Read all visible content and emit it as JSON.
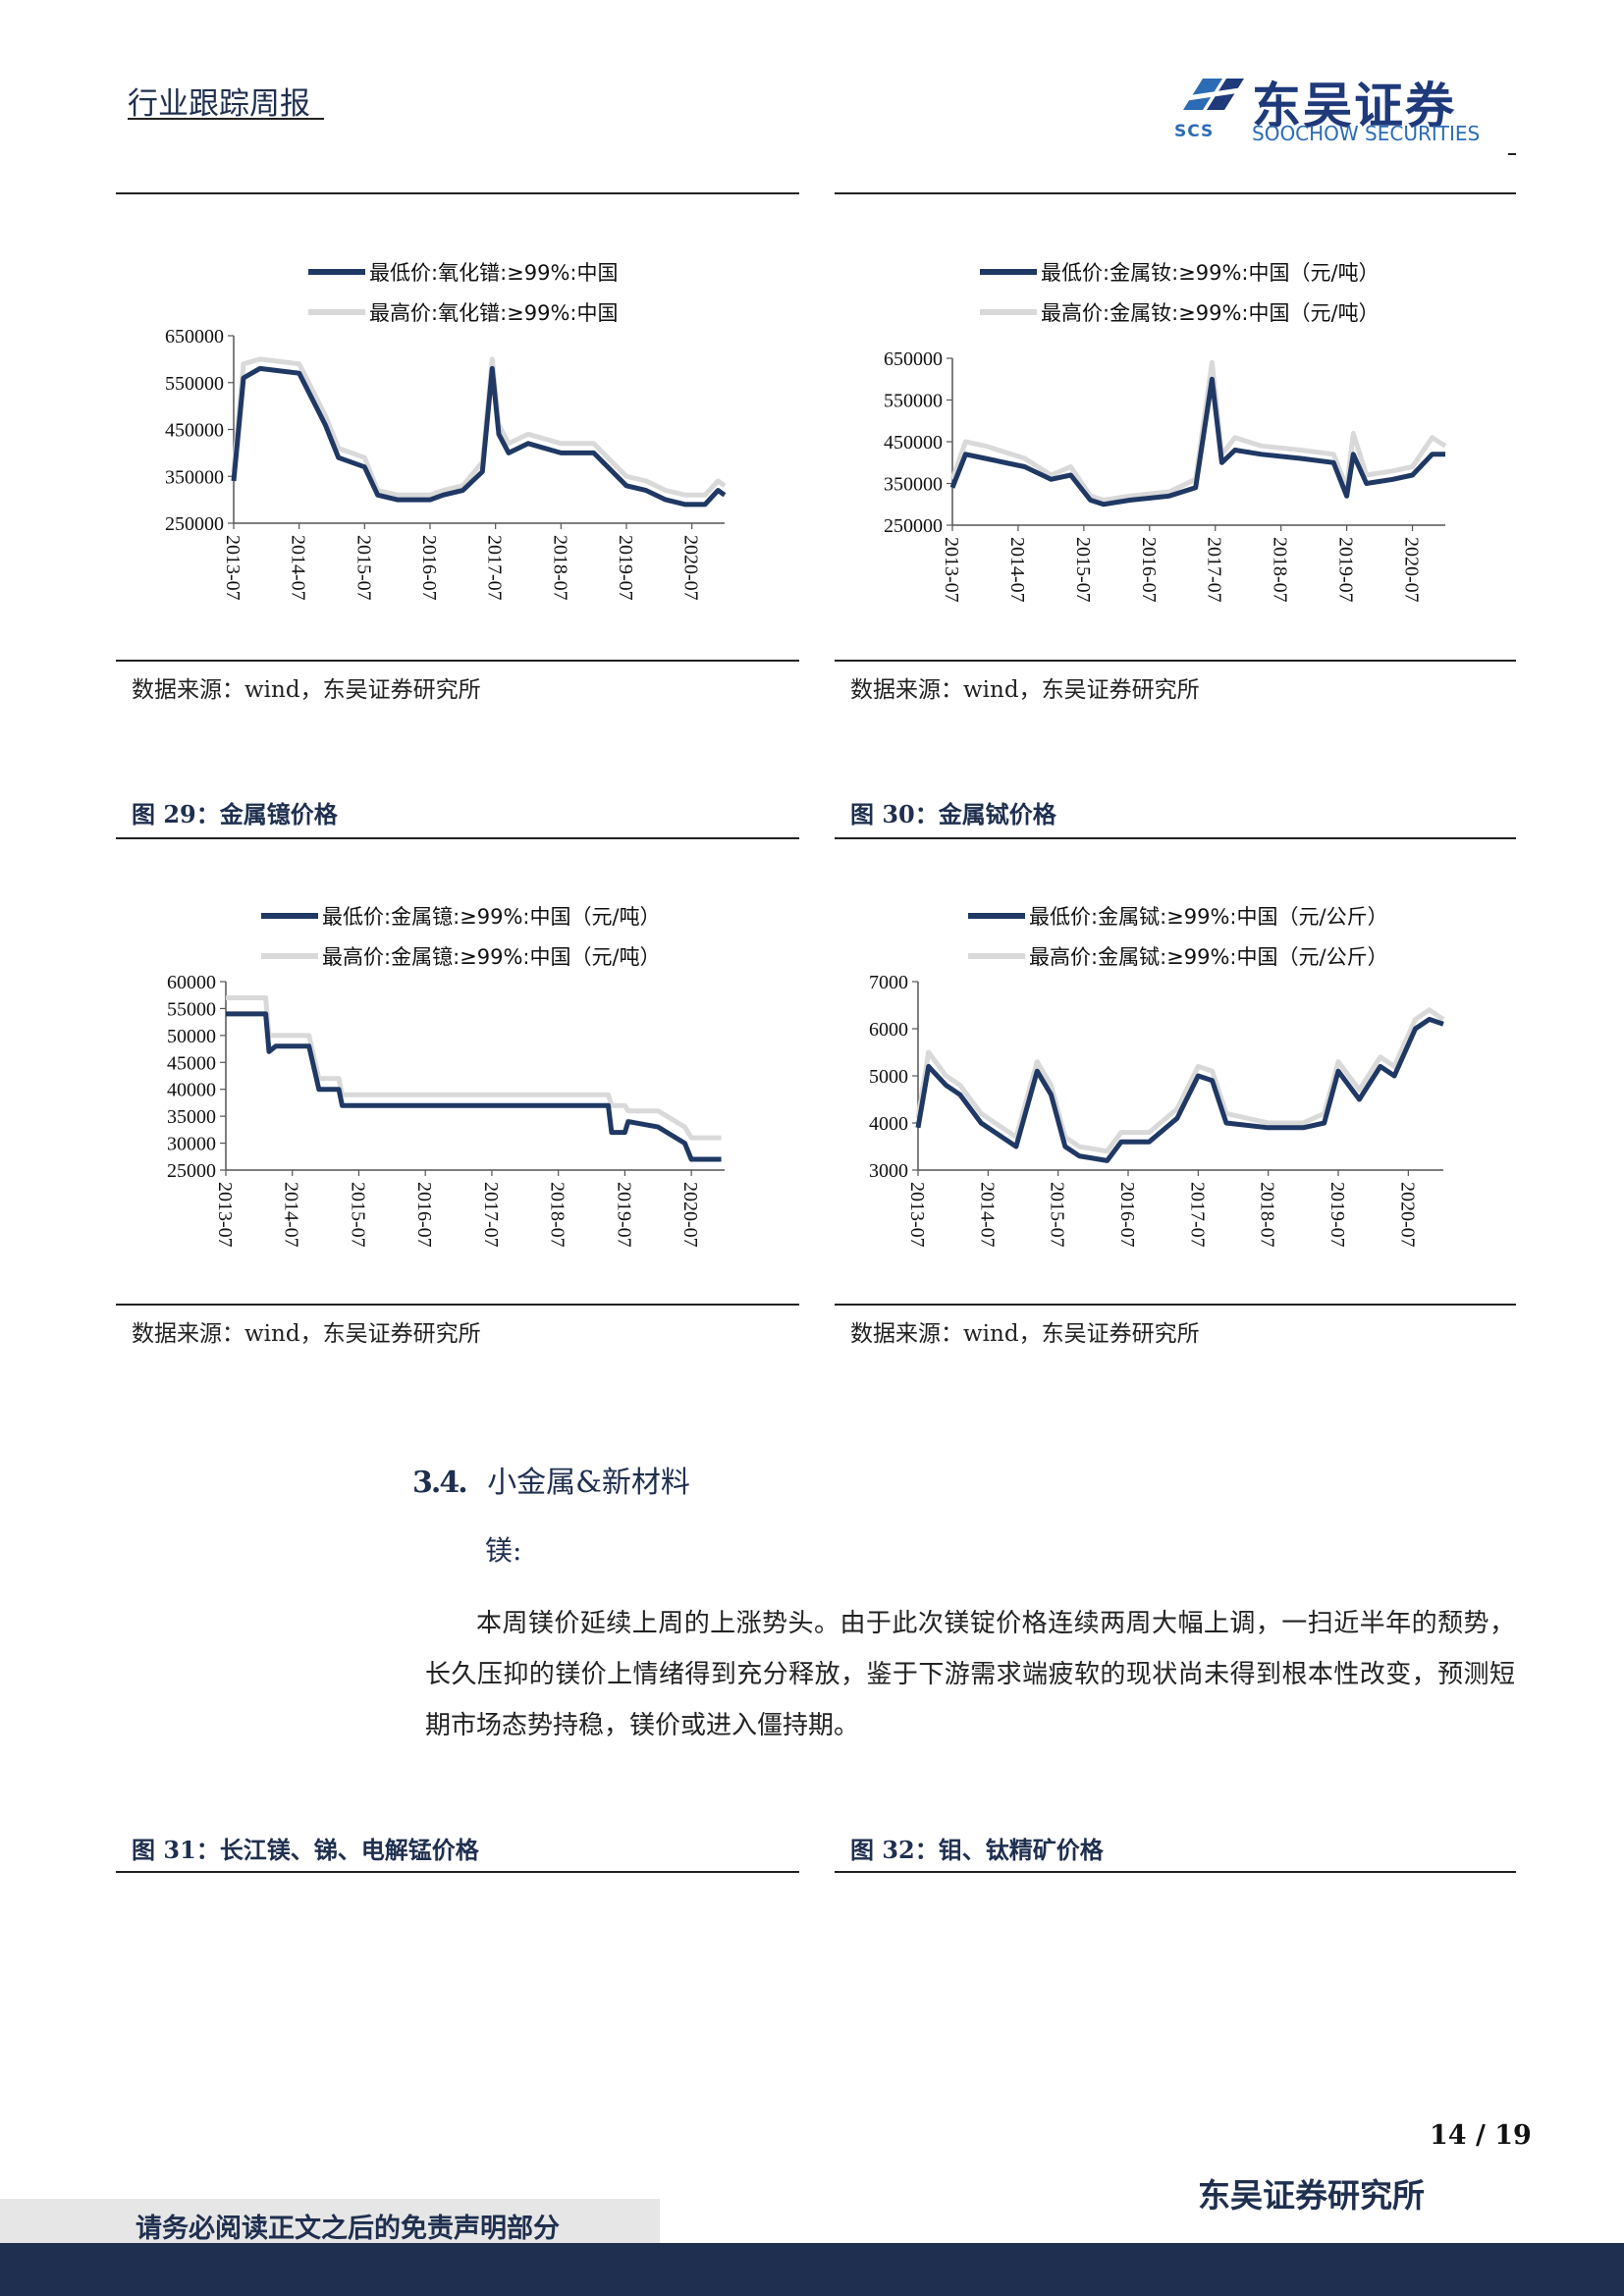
{
  "header": {
    "title": "行业跟踪周报",
    "logo_cn": "东吴证券",
    "logo_en": "SOOCHOW SECURITIES",
    "logo_abbr": "SCS"
  },
  "colors": {
    "navy": "#1f3864",
    "light_gray": "#d9d9d9",
    "brand_blue": "#2b6cb4"
  },
  "source_text": "数据来源：wind，东吴证券研究所",
  "figures": [
    {
      "id": "fig-zro2",
      "title": ""
    },
    {
      "id": "fig-dy",
      "title": ""
    },
    {
      "id": "fig-yb",
      "title": "图 29：金属镱价格"
    },
    {
      "id": "fig-tb",
      "title": "图 30：金属铽价格"
    },
    {
      "id": "fig-mg",
      "title": "图 31：长江镁、锑、电解锰价格"
    },
    {
      "id": "fig-mo",
      "title": "图 32：钼、钛精矿价格"
    }
  ],
  "section": {
    "number": "3.4.",
    "title": "小金属&新材料",
    "subtitle": "镁:",
    "paragraph": "本周镁价延续上周的上涨势头。由于此次镁锭价格连续两周大幅上调，一扫近半年的颓势，长久压抑的镁价上情绪得到充分释放，鉴于下游需求端疲软的现状尚未得到根本性改变，预测短期市场态势持稳，镁价或进入僵持期。"
  },
  "footer": {
    "page": "14 / 19",
    "institute": "东吴证券研究所",
    "disclaimer": "请务必阅读正文之后的免责声明部分"
  },
  "chart_data": [
    {
      "type": "line",
      "x_tick_labels": [
        "2013-07",
        "2014-07",
        "2015-07",
        "2016-07",
        "2017-07",
        "2018-07",
        "2019-07",
        "2020-07"
      ],
      "ylim": [
        250000,
        650000
      ],
      "yticks": [
        250000,
        350000,
        450000,
        550000,
        650000
      ],
      "legend_position": "top",
      "grid": false,
      "series": [
        {
          "name": "最低价:氧化镨:≥99%:中国",
          "color": "#1f3864",
          "x": [
            2013.5,
            2013.65,
            2013.9,
            2014.5,
            2014.9,
            2015.1,
            2015.5,
            2015.7,
            2016.0,
            2016.5,
            2016.7,
            2017.0,
            2017.3,
            2017.45,
            2017.55,
            2017.7,
            2018.0,
            2018.5,
            2019.0,
            2019.5,
            2019.8,
            2020.1,
            2020.4,
            2020.7,
            2020.9,
            2021.0
          ],
          "y": [
            340000,
            560000,
            580000,
            570000,
            460000,
            390000,
            370000,
            310000,
            300000,
            300000,
            310000,
            320000,
            360000,
            580000,
            440000,
            400000,
            420000,
            400000,
            400000,
            330000,
            320000,
            300000,
            290000,
            290000,
            320000,
            310000
          ]
        },
        {
          "name": "最高价:氧化镨:≥99%:中国",
          "color": "#d9d9d9",
          "x": [
            2013.5,
            2013.65,
            2013.9,
            2014.5,
            2014.9,
            2015.1,
            2015.5,
            2015.7,
            2016.0,
            2016.5,
            2016.7,
            2017.0,
            2017.3,
            2017.45,
            2017.55,
            2017.7,
            2018.0,
            2018.5,
            2019.0,
            2019.5,
            2019.8,
            2020.1,
            2020.4,
            2020.7,
            2020.9,
            2021.0
          ],
          "y": [
            360000,
            590000,
            600000,
            590000,
            480000,
            410000,
            390000,
            320000,
            310000,
            310000,
            320000,
            330000,
            380000,
            600000,
            460000,
            420000,
            440000,
            420000,
            420000,
            350000,
            340000,
            320000,
            310000,
            310000,
            340000,
            330000
          ]
        }
      ]
    },
    {
      "type": "line",
      "x_tick_labels": [
        "2013-07",
        "2014-07",
        "2015-07",
        "2016-07",
        "2017-07",
        "2018-07",
        "2019-07",
        "2020-07"
      ],
      "ylim": [
        250000,
        650000
      ],
      "yticks": [
        250000,
        350000,
        450000,
        550000,
        650000
      ],
      "legend_position": "top",
      "grid": false,
      "series": [
        {
          "name": "最低价:金属钕:≥99%:中国（元/吨）",
          "color": "#1f3864",
          "x": [
            2013.5,
            2013.7,
            2014.0,
            2014.6,
            2015.0,
            2015.3,
            2015.6,
            2015.8,
            2016.2,
            2016.8,
            2017.2,
            2017.45,
            2017.6,
            2017.8,
            2018.2,
            2018.8,
            2019.3,
            2019.5,
            2019.6,
            2019.8,
            2020.2,
            2020.5,
            2020.8,
            2021.0
          ],
          "y": [
            340000,
            420000,
            410000,
            390000,
            360000,
            370000,
            310000,
            300000,
            310000,
            320000,
            340000,
            600000,
            400000,
            430000,
            420000,
            410000,
            400000,
            320000,
            420000,
            350000,
            360000,
            370000,
            420000,
            420000
          ]
        },
        {
          "name": "最高价:金属钕:≥99%:中国（元/吨）",
          "color": "#d9d9d9",
          "x": [
            2013.5,
            2013.7,
            2014.0,
            2014.6,
            2015.0,
            2015.3,
            2015.6,
            2015.8,
            2016.2,
            2016.8,
            2017.2,
            2017.45,
            2017.6,
            2017.8,
            2018.2,
            2018.8,
            2019.3,
            2019.5,
            2019.6,
            2019.8,
            2020.2,
            2020.5,
            2020.8,
            2021.0
          ],
          "y": [
            360000,
            450000,
            440000,
            410000,
            370000,
            390000,
            320000,
            310000,
            320000,
            330000,
            360000,
            640000,
            420000,
            460000,
            440000,
            430000,
            420000,
            340000,
            470000,
            370000,
            380000,
            390000,
            460000,
            440000
          ]
        }
      ]
    },
    {
      "type": "line",
      "x_tick_labels": [
        "2013-07",
        "2014-07",
        "2015-07",
        "2016-07",
        "2017-07",
        "2018-07",
        "2019-07",
        "2020-07"
      ],
      "ylim": [
        25000,
        60000
      ],
      "yticks": [
        25000,
        30000,
        35000,
        40000,
        45000,
        50000,
        55000,
        60000
      ],
      "legend_position": "top",
      "grid": false,
      "series": [
        {
          "name": "最低价:金属镱:≥99%:中国（元/吨）",
          "color": "#1f3864",
          "x": [
            2013.5,
            2014.1,
            2014.15,
            2014.25,
            2014.75,
            2014.9,
            2015.2,
            2015.25,
            2019.25,
            2019.3,
            2019.5,
            2019.55,
            2020.0,
            2020.4,
            2020.5,
            2020.95
          ],
          "y": [
            54000,
            54000,
            47000,
            48000,
            48000,
            40000,
            40000,
            37000,
            37000,
            32000,
            32000,
            34000,
            33000,
            30000,
            27000,
            27000
          ]
        },
        {
          "name": "最高价:金属镱:≥99%:中国（元/吨）",
          "color": "#d9d9d9",
          "x": [
            2013.5,
            2014.1,
            2014.15,
            2014.25,
            2014.75,
            2014.9,
            2015.2,
            2015.25,
            2019.25,
            2019.3,
            2019.5,
            2019.55,
            2020.0,
            2020.4,
            2020.5,
            2020.95
          ],
          "y": [
            57000,
            57000,
            50000,
            50000,
            50000,
            42000,
            42000,
            39000,
            39000,
            37000,
            37000,
            36000,
            36000,
            33000,
            31000,
            31000
          ]
        }
      ]
    },
    {
      "type": "line",
      "x_tick_labels": [
        "2013-07",
        "2014-07",
        "2015-07",
        "2016-07",
        "2017-07",
        "2018-07",
        "2019-07",
        "2020-07"
      ],
      "ylim": [
        3000,
        7000
      ],
      "yticks": [
        3000,
        4000,
        5000,
        6000,
        7000
      ],
      "legend_position": "top",
      "grid": false,
      "series": [
        {
          "name": "最低价:金属铽:≥99%:中国（元/公斤）",
          "color": "#1f3864",
          "x": [
            2013.5,
            2013.65,
            2013.9,
            2014.1,
            2014.4,
            2014.7,
            2014.9,
            2015.2,
            2015.4,
            2015.6,
            2015.8,
            2016.2,
            2016.4,
            2016.8,
            2017.2,
            2017.5,
            2017.7,
            2017.9,
            2018.5,
            2019.0,
            2019.3,
            2019.5,
            2019.8,
            2020.1,
            2020.3,
            2020.6,
            2020.8,
            2021.0
          ],
          "y": [
            3900,
            5200,
            4800,
            4600,
            4000,
            3700,
            3500,
            5100,
            4600,
            3500,
            3300,
            3200,
            3600,
            3600,
            4100,
            5000,
            4900,
            4000,
            3900,
            3900,
            4000,
            5100,
            4500,
            5200,
            5000,
            6000,
            6200,
            6100
          ]
        },
        {
          "name": "最高价:金属铽:≥99%:中国（元/公斤）",
          "color": "#d9d9d9",
          "x": [
            2013.5,
            2013.65,
            2013.9,
            2014.1,
            2014.4,
            2014.7,
            2014.9,
            2015.2,
            2015.4,
            2015.6,
            2015.8,
            2016.2,
            2016.4,
            2016.8,
            2017.2,
            2017.5,
            2017.7,
            2017.9,
            2018.5,
            2019.0,
            2019.3,
            2019.5,
            2019.8,
            2020.1,
            2020.3,
            2020.6,
            2020.8,
            2021.0
          ],
          "y": [
            4100,
            5500,
            5000,
            4800,
            4200,
            3900,
            3700,
            5300,
            4800,
            3700,
            3500,
            3400,
            3800,
            3800,
            4300,
            5200,
            5100,
            4200,
            4000,
            4000,
            4200,
            5300,
            4700,
            5400,
            5200,
            6200,
            6400,
            6200
          ]
        }
      ]
    }
  ]
}
